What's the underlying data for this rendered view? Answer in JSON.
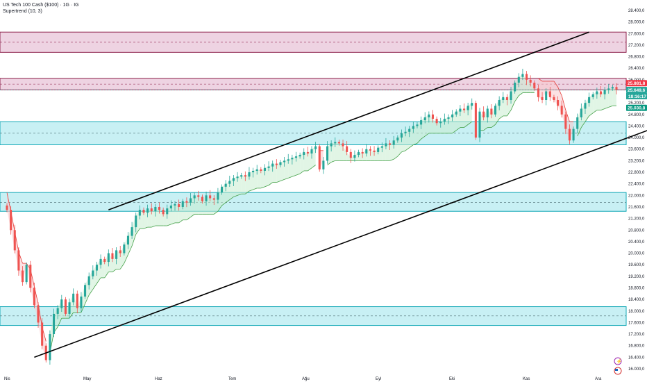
{
  "header": {
    "title": "US Tech 100 Cash ($100) · 1G · IG",
    "indicator": "Supertrend (10, 3)"
  },
  "colors": {
    "up": "#26a69a",
    "down": "#ef5350",
    "resistance_fill": "#e7c1d6",
    "resistance_line": "#8c1f4a",
    "support_fill": "#b6ebf0",
    "support_line": "#12a8b6",
    "channel": "#000000",
    "price_tag": "#26a69a",
    "high_tag": "#f23645",
    "st_tag": "#089981"
  },
  "chart_data": {
    "type": "candlestick",
    "x_ticks": [
      "Nis",
      "May",
      "Haz",
      "Tem",
      "Ağu",
      "Eyl",
      "Eki",
      "Kas",
      "Ara"
    ],
    "y_ticks": [
      "16.000,0",
      "16.400,0",
      "16.800,0",
      "17.200,0",
      "17.600,0",
      "18.000,0",
      "18.400,0",
      "18.800,0",
      "19.200,0",
      "19.600,0",
      "20.000,0",
      "20.400,0",
      "20.800,0",
      "21.200,0",
      "21.600,0",
      "22.000,0",
      "22.400,0",
      "22.800,0",
      "23.200,0",
      "23.600,0",
      "24.000,0",
      "24.400,0",
      "24.800,0",
      "25.200,0",
      "25.600,0",
      "26.000,0",
      "26.400,0",
      "26.800,0",
      "27.200,0",
      "27.600,0",
      "28.000,0",
      "28.400,0"
    ],
    "ylim": [
      16000,
      28600
    ],
    "series_close": [
      21500,
      20800,
      20100,
      19400,
      19000,
      19600,
      18800,
      18200,
      17600,
      16800,
      16300,
      17200,
      17900,
      18100,
      18400,
      17900,
      18300,
      18600,
      18100,
      18500,
      18900,
      19200,
      19400,
      19600,
      19800,
      19700,
      20000,
      19800,
      20100,
      20000,
      20300,
      20600,
      20900,
      21300,
      21500,
      21400,
      21550,
      21450,
      21600,
      21500,
      21350,
      21550,
      21650,
      21700,
      21600,
      21800,
      21750,
      21900,
      22000,
      21950,
      21800,
      22000,
      21900,
      21850,
      22100,
      22300,
      22400,
      22500,
      22600,
      22650,
      22700,
      22650,
      22800,
      22850,
      22900,
      22850,
      22950,
      23000,
      23100,
      23050,
      23150,
      23200,
      23250,
      23300,
      23350,
      23400,
      23500,
      23450,
      23600,
      23700,
      22900,
      23200,
      23700,
      23800,
      23850,
      23800,
      23700,
      23500,
      23300,
      23400,
      23500,
      23450,
      23600,
      23550,
      23500,
      23650,
      23700,
      23800,
      23750,
      23900,
      24000,
      24150,
      24200,
      24300,
      24400,
      24450,
      24600,
      24700,
      24800,
      24650,
      24500,
      24550,
      24650,
      24700,
      24800,
      24900,
      25000,
      24950,
      25100,
      25200,
      24000,
      24900,
      24700,
      25000,
      24800,
      25100,
      25300,
      25400,
      25300,
      25600,
      25900,
      26100,
      26200,
      26000,
      25900,
      25700,
      25400,
      25300,
      25600,
      25400,
      25300,
      25100,
      24800,
      24300,
      23900,
      24300,
      24700,
      25000,
      25200,
      25400,
      25500,
      25600,
      25500,
      25650,
      25700,
      25750,
      25649.6
    ],
    "resistance_zones": [
      {
        "top": 27650,
        "bottom": 26950,
        "mid": 27300
      },
      {
        "top": 26050,
        "bottom": 25650,
        "mid": 25850
      }
    ],
    "support_zones": [
      {
        "top": 24550,
        "bottom": 23750,
        "mid": 24150
      },
      {
        "top": 22100,
        "bottom": 21450,
        "mid": 21750
      },
      {
        "top": 18150,
        "bottom": 17500,
        "mid": 17830
      }
    ],
    "channel_upper": [
      [
        26,
        21500
      ],
      [
        149,
        27650
      ]
    ],
    "channel_lower": [
      [
        7,
        16400
      ],
      [
        167,
        24400
      ]
    ],
    "price_labels": {
      "high": "25.881,8",
      "last": "25.649,6",
      "countdown": "18:16:17",
      "supertrend": "25.030,8"
    },
    "price_values": {
      "high": 25881.8,
      "last": 25649.6,
      "supertrend": 25030.8
    }
  }
}
